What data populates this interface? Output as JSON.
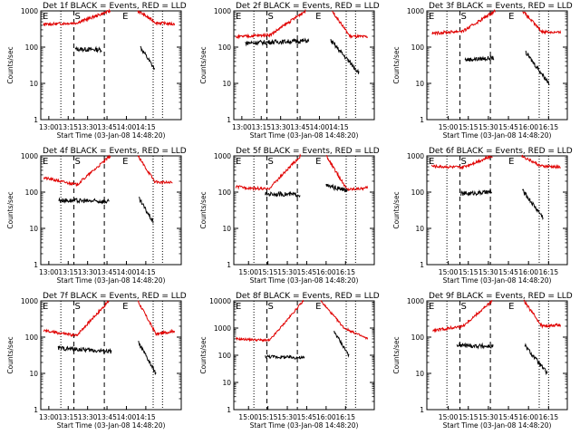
{
  "colors": {
    "events": "#000000",
    "lld": "#e00000",
    "guides": "#000000",
    "background": "#ffffff"
  },
  "common": {
    "ylabel": "Counts/sec",
    "xlabel": "Start Time (03-Jan-08 14:48:20)",
    "x_tick_labels": [
      "13:00",
      "13:15",
      "13:30",
      "13:45",
      "14:00",
      "14:15"
    ],
    "x_tick_labels_alt": [
      "15:00",
      "15:15",
      "15:30",
      "15:45",
      "16:00",
      "16:15"
    ],
    "flag_labels": {
      "start": "E",
      "saa": "S",
      "end": "E"
    }
  },
  "chart_data": [
    {
      "type": "line",
      "title": "Det 1f BLACK = Events, RED = LLD",
      "xticks": "default",
      "ylim": [
        1,
        1000
      ],
      "yticks": [
        "1",
        "10",
        "100",
        "1000"
      ],
      "guides": [
        30,
        49.5,
        71.5,
        95,
        168,
        182
      ],
      "series": [
        {
          "name": "Events",
          "segments": [
            [
              51.5,
              91,
              88,
              85
            ],
            [
              149,
              170,
              100,
              25
            ]
          ]
        },
        {
          "name": "LLD",
          "segments": [
            [
              4,
              104,
              420,
              470,
              1000
            ],
            [
              145,
              200,
              1000,
              470,
              430
            ]
          ]
        }
      ]
    },
    {
      "type": "line",
      "title": "Det 2f BLACK = Events, RED = LLD",
      "xticks": "default",
      "ylim": [
        1,
        1000
      ],
      "yticks": [
        "1",
        "10",
        "100",
        "1000"
      ],
      "guides": [
        30,
        49.5,
        71.5,
        95,
        168,
        182
      ],
      "series": [
        {
          "name": "Events",
          "segments": [
            [
              17,
              112,
              130,
              150
            ],
            [
              145,
              187,
              150,
              20
            ]
          ]
        },
        {
          "name": "LLD",
          "segments": [
            [
              3,
              107,
              190,
              220,
              1000
            ],
            [
              147,
              200,
              1000,
              200,
              190
            ]
          ]
        }
      ]
    },
    {
      "type": "line",
      "title": "Det 3f BLACK = Events, RED = LLD",
      "xticks": "alt",
      "ylim": [
        1,
        1000
      ],
      "yticks": [
        "1",
        "10",
        "100",
        "1000"
      ],
      "guides": [
        30,
        49.5,
        71.5,
        95,
        168,
        182
      ],
      "series": [
        {
          "name": "Events",
          "segments": [
            [
              57,
              100,
              45,
              50
            ],
            [
              148,
              183,
              70,
              10
            ]
          ]
        },
        {
          "name": "LLD",
          "segments": [
            [
              8,
              102,
              240,
              280,
              1000
            ],
            [
              143,
              200,
              1000,
              270,
              250
            ]
          ]
        }
      ]
    },
    {
      "type": "line",
      "title": "Det 4f BLACK = Events, RED = LLD",
      "xticks": "default",
      "ylim": [
        1,
        1000
      ],
      "yticks": [
        "1",
        "10",
        "100",
        "1000"
      ],
      "guides": [
        30,
        49.5,
        71.5,
        95,
        168,
        182
      ],
      "series": [
        {
          "name": "Events",
          "segments": [
            [
              27,
              102,
              60,
              55
            ],
            [
              147,
              168,
              65,
              15
            ]
          ]
        },
        {
          "name": "LLD",
          "segments": [
            [
              4,
              104,
              250,
              160,
              1000
            ],
            [
              145,
              197,
              1000,
              190,
              180
            ]
          ]
        }
      ]
    },
    {
      "type": "line",
      "title": "Det 5f BLACK = Events, RED = LLD",
      "xticks": "alt2",
      "ylim": [
        1,
        1000
      ],
      "yticks": [
        "1",
        "10",
        "100",
        "1000"
      ],
      "guides": [
        30,
        49.5,
        71.5,
        95,
        168,
        182
      ],
      "series": [
        {
          "name": "Events",
          "segments": [
            [
              47,
              99,
              90,
              85
            ],
            [
              138,
              170,
              150,
              110
            ]
          ]
        },
        {
          "name": "LLD",
          "segments": [
            [
              3,
              100,
              140,
              120,
              1000
            ],
            [
              138,
              200,
              1000,
              120,
              130
            ]
          ]
        }
      ]
    },
    {
      "type": "line",
      "title": "Det 6f BLACK = Events, RED = LLD",
      "xticks": "alt",
      "ylim": [
        1,
        1000
      ],
      "yticks": [
        "1",
        "10",
        "100",
        "1000"
      ],
      "guides": [
        30,
        49.5,
        71.5,
        95,
        168,
        182
      ],
      "series": [
        {
          "name": "Events",
          "segments": [
            [
              51,
              97,
              90,
              100
            ],
            [
              143,
              174,
              110,
              20
            ]
          ]
        },
        {
          "name": "LLD",
          "segments": [
            [
              7,
              98,
              520,
              480,
              1000
            ],
            [
              142,
              200,
              1000,
              520,
              490
            ]
          ]
        }
      ]
    },
    {
      "type": "line",
      "title": "Det 7f BLACK = Events, RED = LLD",
      "xticks": "default",
      "ylim": [
        1,
        1000
      ],
      "yticks": [
        "1",
        "10",
        "100",
        "1000"
      ],
      "guides": [
        30,
        49.5,
        71.5,
        95,
        168,
        182
      ],
      "series": [
        {
          "name": "Events",
          "segments": [
            [
              26,
              106,
              50,
              40
            ],
            [
              146,
              172,
              70,
              10
            ]
          ]
        },
        {
          "name": "LLD",
          "segments": [
            [
              4,
              102,
              150,
              110,
              1000
            ],
            [
              145,
              200,
              1000,
              120,
              150
            ]
          ]
        }
      ]
    },
    {
      "type": "line",
      "title": "Det 8f BLACK = Events, RED = LLD",
      "xticks": "alt2",
      "ylim": [
        1,
        10000
      ],
      "yticks": [
        "1",
        "10",
        "100",
        "1000",
        "10000"
      ],
      "guides": [
        30,
        49.5,
        71.5,
        95,
        168,
        182
      ],
      "series": [
        {
          "name": "Events",
          "segments": [
            [
              47,
              106,
              90,
              80
            ],
            [
              150,
              172,
              750,
              100
            ]
          ]
        },
        {
          "name": "LLD",
          "segments": [
            [
              3,
              104,
              400,
              350,
              10000
            ],
            [
              130,
              200,
              10000,
              1000,
              400
            ]
          ]
        }
      ]
    },
    {
      "type": "line",
      "title": "Det 9f BLACK = Events, RED = LLD",
      "xticks": "alt",
      "ylim": [
        1,
        1000
      ],
      "yticks": [
        "1",
        "10",
        "100",
        "1000"
      ],
      "guides": [
        30,
        49.5,
        71.5,
        95,
        168,
        182
      ],
      "series": [
        {
          "name": "Events",
          "segments": [
            [
              45,
              99,
              60,
              55
            ],
            [
              146,
              180,
              60,
              10
            ]
          ]
        },
        {
          "name": "LLD",
          "segments": [
            [
              9,
              98,
              150,
              200,
              1000
            ],
            [
              145,
              200,
              1000,
              200,
              220
            ]
          ]
        }
      ]
    }
  ]
}
